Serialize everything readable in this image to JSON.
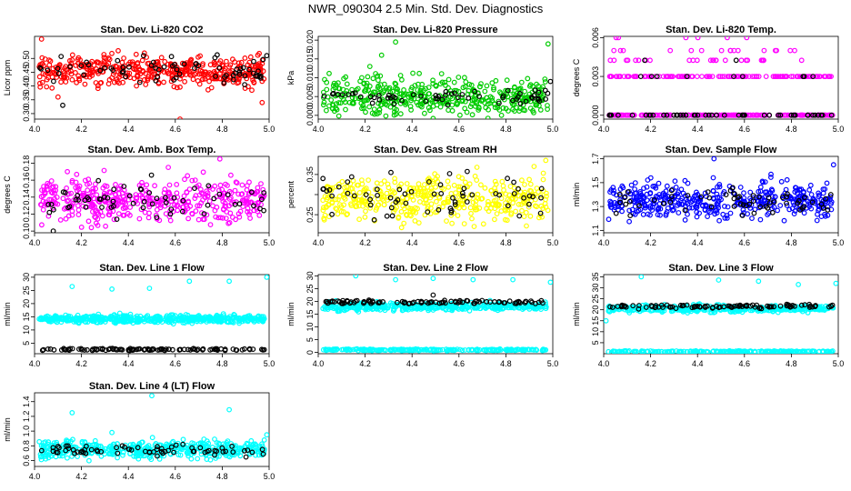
{
  "page_title": "NWR_090304  2.5 Min. Std. Dev. Diagnostics",
  "chart_data": [
    {
      "type": "scatter",
      "title": "Stan. Dev. Li-820 CO2",
      "ylabel": "Licor ppm",
      "xlim": [
        4.0,
        5.0
      ],
      "ylim": [
        0.28,
        0.58
      ],
      "xticks": [
        "4.0",
        "4.2",
        "4.4",
        "4.6",
        "4.8",
        "5.0"
      ],
      "yticks": [
        "0.30",
        "0.35",
        "0.40",
        "0.45",
        "0.50"
      ],
      "grid": false,
      "series": [
        {
          "color": "#ff0000",
          "band": {
            "center": 0.455,
            "spread": 0.05
          },
          "count": 420,
          "outliers": [
            [
              4.03,
              0.57
            ],
            [
              4.62,
              0.28
            ],
            [
              4.1,
              0.36
            ],
            [
              4.97,
              0.34
            ]
          ]
        },
        {
          "color": "#000000",
          "band": {
            "center": 0.455,
            "spread": 0.045
          },
          "count": 70,
          "outliers": [
            [
              4.12,
              0.33
            ],
            [
              4.99,
              0.51
            ]
          ]
        }
      ]
    },
    {
      "type": "scatter",
      "title": "Stan. Dev. Li-820 Pressure",
      "ylabel": "kPa",
      "xlim": [
        4.0,
        5.0
      ],
      "ylim": [
        -0.001,
        0.021
      ],
      "xticks": [
        "4.0",
        "4.2",
        "4.4",
        "4.6",
        "4.8",
        "5.0"
      ],
      "yticks": [
        "0.000",
        "0.005",
        "0.010",
        "0.015",
        "0.020"
      ],
      "grid": false,
      "series": [
        {
          "color": "#00cc00",
          "band": {
            "center": 0.005,
            "spread": 0.0045
          },
          "count": 420,
          "outliers": [
            [
              4.33,
              0.0195
            ],
            [
              4.98,
              0.019
            ],
            [
              4.22,
              0.013
            ],
            [
              4.27,
              0.016
            ]
          ]
        },
        {
          "color": "#000000",
          "band": {
            "center": 0.005,
            "spread": 0.002
          },
          "count": 60,
          "outliers": [
            [
              4.99,
              0.009
            ]
          ]
        }
      ]
    },
    {
      "type": "scatter",
      "title": "Stan. Dev. Li-820 Temp.",
      "ylabel": "degrees C",
      "xlim": [
        4.0,
        5.0
      ],
      "ylim": [
        -0.0003,
        0.0061
      ],
      "xticks": [
        "4.0",
        "4.2",
        "4.4",
        "4.6",
        "4.8",
        "5.0"
      ],
      "yticks": [
        "0.000",
        "0.003",
        "0.006"
      ],
      "grid": false,
      "levels": [
        0.0,
        0.00215,
        0.003,
        0.00425,
        0.005,
        0.006
      ],
      "series": [
        {
          "color": "#ff00ff",
          "level_weights": [
            0.55,
            0.0,
            0.35,
            0.06,
            0.03,
            0.01
          ],
          "count": 380
        },
        {
          "color": "#000000",
          "level_weights": [
            0.75,
            0.0,
            0.22,
            0.03,
            0.0,
            0.0
          ],
          "count": 60
        }
      ]
    },
    {
      "type": "scatter",
      "title": "Stan. Dev. Amb. Box Temp.",
      "ylabel": "degrees C",
      "xlim": [
        4.0,
        5.0
      ],
      "ylim": [
        0.098,
        0.188
      ],
      "xticks": [
        "4.0",
        "4.2",
        "4.4",
        "4.6",
        "4.8",
        "5.0"
      ],
      "yticks": [
        "0.10",
        "0.12",
        "0.14",
        "0.16",
        "0.18"
      ],
      "grid": false,
      "series": [
        {
          "color": "#ff00ff",
          "band": {
            "center": 0.136,
            "spread": 0.022
          },
          "count": 420,
          "outliers": [
            [
              4.57,
              0.175
            ],
            [
              4.79,
              0.185
            ],
            [
              4.14,
              0.17
            ]
          ]
        },
        {
          "color": "#000000",
          "band": {
            "center": 0.135,
            "spread": 0.02
          },
          "count": 60,
          "outliers": [
            [
              4.08,
              0.1
            ]
          ]
        }
      ]
    },
    {
      "type": "scatter",
      "title": "Stan. Dev. Gas Stream RH",
      "ylabel": "percent",
      "xlim": [
        4.0,
        5.0
      ],
      "ylim": [
        0.205,
        0.395
      ],
      "xticks": [
        "4.0",
        "4.2",
        "4.4",
        "4.6",
        "4.8",
        "5.0"
      ],
      "yticks": [
        "0.25",
        "",
        "0.35"
      ],
      "grid": false,
      "series": [
        {
          "color": "#ffff00",
          "band": {
            "center": 0.29,
            "spread": 0.05
          },
          "count": 420,
          "outliers": [
            [
              4.97,
              0.385
            ],
            [
              4.92,
              0.37
            ]
          ]
        },
        {
          "color": "#000000",
          "band": {
            "center": 0.29,
            "spread": 0.045
          },
          "count": 60,
          "outliers": [
            [
              4.02,
              0.34
            ],
            [
              4.31,
              0.355
            ],
            [
              4.56,
              0.352
            ]
          ]
        }
      ]
    },
    {
      "type": "scatter",
      "title": "Stan. Dev. Sample Flow",
      "ylabel": "ml/min",
      "xlim": [
        4.0,
        5.0
      ],
      "ylim": [
        1.08,
        1.72
      ],
      "xticks": [
        "4.0",
        "4.2",
        "4.4",
        "4.6",
        "4.8",
        "5.0"
      ],
      "yticks": [
        "1.1",
        "1.3",
        "1.5",
        "1.7"
      ],
      "grid": false,
      "series": [
        {
          "color": "#0000ff",
          "band": {
            "center": 1.35,
            "spread": 0.14
          },
          "count": 420,
          "outliers": [
            [
              4.47,
              1.7
            ],
            [
              4.98,
              1.65
            ]
          ]
        },
        {
          "color": "#000000",
          "band": {
            "center": 1.34,
            "spread": 0.1
          },
          "count": 60
        }
      ]
    },
    {
      "type": "scatter",
      "title": "Stan. Dev. Line 1 Flow",
      "ylabel": "ml/min",
      "xlim": [
        4.0,
        5.0
      ],
      "ylim": [
        1.0,
        31.0
      ],
      "xticks": [
        "4.0",
        "4.2",
        "4.4",
        "4.6",
        "4.8",
        "5.0"
      ],
      "yticks": [
        "5",
        "10",
        "15",
        "20",
        "25",
        "30"
      ],
      "grid": false,
      "series": [
        {
          "color": "#00ffff",
          "band": {
            "center": 14.2,
            "spread": 1.3
          },
          "count": 500,
          "outliers": [
            [
              4.16,
              26.5
            ],
            [
              4.33,
              25.5
            ],
            [
              4.49,
              25.8
            ],
            [
              4.66,
              28.5
            ],
            [
              4.83,
              28.5
            ],
            [
              4.99,
              30.0
            ]
          ]
        },
        {
          "color": "#000000",
          "band": {
            "center": 2.6,
            "spread": 0.35
          },
          "count": 110
        }
      ]
    },
    {
      "type": "scatter",
      "title": "Stan. Dev. Line 2 Flow",
      "ylabel": "ml/min",
      "xlim": [
        4.0,
        5.0
      ],
      "ylim": [
        -0.5,
        30.5
      ],
      "xticks": [
        "4.0",
        "4.2",
        "4.4",
        "4.6",
        "4.8",
        "5.0"
      ],
      "yticks": [
        "0",
        "5",
        "10",
        "15",
        "20",
        "25",
        "30"
      ],
      "grid": false,
      "series": [
        {
          "color": "#00ffff",
          "band": {
            "center": 18.0,
            "spread": 1.4
          },
          "count": 400,
          "outliers": [
            [
              4.16,
              30.0
            ],
            [
              4.33,
              28.5
            ],
            [
              4.49,
              29.0
            ],
            [
              4.66,
              28.5
            ],
            [
              4.83,
              28.5
            ],
            [
              4.99,
              27.5
            ]
          ]
        },
        {
          "color": "#00ffff",
          "band": {
            "center": 1.0,
            "spread": 0.3
          },
          "count": 220
        },
        {
          "color": "#000000",
          "band": {
            "center": 19.7,
            "spread": 0.7
          },
          "count": 100,
          "outliers": [
            [
              4.49,
              22.5
            ]
          ]
        }
      ]
    },
    {
      "type": "scatter",
      "title": "Stan. Dev. Line 3 Flow",
      "ylabel": "ml/min",
      "xlim": [
        4.0,
        5.0
      ],
      "ylim": [
        0.0,
        36.0
      ],
      "xticks": [
        "4.0",
        "4.2",
        "4.4",
        "4.6",
        "4.8",
        "5.0"
      ],
      "yticks": [
        "5",
        "10",
        "15",
        "20",
        "25",
        "30",
        "35"
      ],
      "grid": false,
      "series": [
        {
          "color": "#00ffff",
          "band": {
            "center": 20.5,
            "spread": 1.4
          },
          "count": 400,
          "outliers": [
            [
              4.16,
              35.0
            ],
            [
              4.49,
              33.5
            ],
            [
              4.66,
              33.0
            ],
            [
              4.83,
              31.5
            ],
            [
              4.99,
              32.0
            ],
            [
              4.01,
              15.0
            ]
          ]
        },
        {
          "color": "#00ffff",
          "band": {
            "center": 1.0,
            "spread": 0.3
          },
          "count": 220
        },
        {
          "color": "#000000",
          "band": {
            "center": 21.5,
            "spread": 0.8
          },
          "count": 100
        }
      ]
    },
    {
      "type": "scatter",
      "title": "Stan. Dev. Line 4 (LT) Flow",
      "ylabel": "ml/min",
      "xlim": [
        4.0,
        5.0
      ],
      "ylim": [
        0.52,
        1.52
      ],
      "xticks": [
        "4.0",
        "4.2",
        "4.4",
        "4.6",
        "4.8",
        "5.0"
      ],
      "yticks": [
        "0.6",
        "0.8",
        "1.0",
        "1.2",
        "1.4"
      ],
      "grid": false,
      "series": [
        {
          "color": "#00ffff",
          "band": {
            "center": 0.75,
            "spread": 0.11
          },
          "count": 450,
          "outliers": [
            [
              4.16,
              1.25
            ],
            [
              4.5,
              1.48
            ],
            [
              4.83,
              1.29
            ],
            [
              4.99,
              0.95
            ],
            [
              4.33,
              0.98
            ]
          ]
        },
        {
          "color": "#000000",
          "band": {
            "center": 0.74,
            "spread": 0.07
          },
          "count": 70
        }
      ]
    }
  ]
}
